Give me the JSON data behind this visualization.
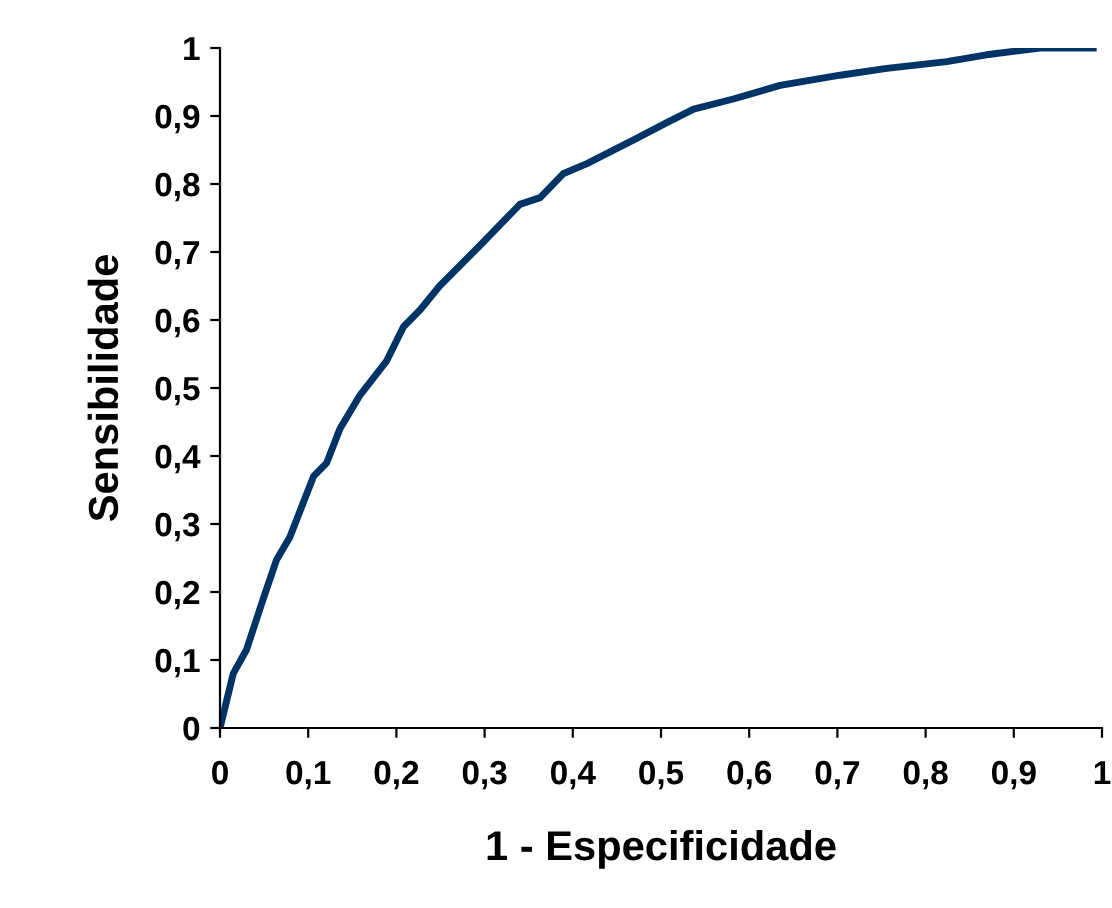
{
  "chart_data": {
    "type": "line",
    "xlabel": "1 - Especificidade",
    "ylabel": "Sensibilidade",
    "x": [
      0,
      0.015,
      0.03,
      0.049,
      0.064,
      0.079,
      0.106,
      0.121,
      0.136,
      0.159,
      0.189,
      0.208,
      0.227,
      0.249,
      0.295,
      0.34,
      0.363,
      0.389,
      0.416,
      0.469,
      0.506,
      0.537,
      0.582,
      0.635,
      0.703,
      0.756,
      0.824,
      0.869,
      0.93,
      0.99
    ],
    "series": [
      {
        "color": "#003366",
        "values": [
          0,
          0.08,
          0.115,
          0.19,
          0.247,
          0.28,
          0.37,
          0.39,
          0.44,
          0.49,
          0.54,
          0.59,
          0.615,
          0.65,
          0.71,
          0.77,
          0.78,
          0.815,
          0.83,
          0.865,
          0.89,
          0.91,
          0.925,
          0.945,
          0.96,
          0.97,
          0.98,
          0.99,
          1,
          1
        ]
      }
    ],
    "xlim": [
      0,
      1
    ],
    "ylim": [
      0,
      1
    ],
    "xticks": [
      0,
      {
        "value": 0.1,
        "label": "0,1"
      },
      {
        "value": 0.2,
        "label": "0,2"
      },
      {
        "value": 0.3,
        "label": "0,3"
      },
      {
        "value": 0.4,
        "label": "0,4"
      },
      {
        "value": 0.5,
        "label": "0,5"
      },
      {
        "value": 0.6,
        "label": "0,6"
      },
      {
        "value": 0.7,
        "label": "0,7"
      },
      {
        "value": 0.8,
        "label": "0,8"
      },
      {
        "value": 0.9,
        "label": "0,9"
      },
      1
    ],
    "yticks": [
      0,
      {
        "value": 0.1,
        "label": "0,1"
      },
      {
        "value": 0.2,
        "label": "0,2"
      },
      {
        "value": 0.3,
        "label": "0,3"
      },
      {
        "value": 0.4,
        "label": "0,4"
      },
      {
        "value": 0.5,
        "label": "0,5"
      },
      {
        "value": 0.6,
        "label": "0,6"
      },
      {
        "value": 0.7,
        "label": "0,7"
      },
      {
        "value": 0.8,
        "label": "0,8"
      },
      {
        "value": 0.9,
        "label": "0,9"
      },
      1
    ],
    "grid": false,
    "legend": false,
    "marker": "none",
    "line_style": "solid"
  }
}
